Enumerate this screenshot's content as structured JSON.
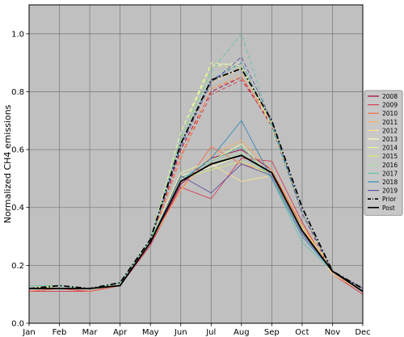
{
  "chart_data": {
    "type": "line",
    "title": "",
    "xlabel": "",
    "ylabel": "Normalized CH4 emissions",
    "categories": [
      "Jan",
      "Feb",
      "Mar",
      "Apr",
      "May",
      "Jun",
      "Jul",
      "Aug",
      "Sep",
      "Oct",
      "Nov",
      "Dec"
    ],
    "ylim": [
      0.0,
      1.1
    ],
    "yticks": [
      "0.0",
      "0.2",
      "0.4",
      "0.6",
      "0.8",
      "1.0"
    ],
    "grid": true,
    "background_color": "#c0c0c0",
    "legend_position": "right",
    "series": [
      {
        "name": "2008",
        "color": "#9e0142",
        "style": "solid",
        "values": [
          0.12,
          0.12,
          0.11,
          0.13,
          0.27,
          0.48,
          0.57,
          0.6,
          0.53,
          0.33,
          0.17,
          0.11
        ]
      },
      {
        "name": "2009",
        "color": "#d53e4f",
        "style": "solid",
        "values": [
          0.11,
          0.11,
          0.11,
          0.13,
          0.27,
          0.47,
          0.43,
          0.57,
          0.56,
          0.35,
          0.17,
          0.1
        ]
      },
      {
        "name": "2010",
        "color": "#f46d43",
        "style": "solid",
        "values": [
          0.11,
          0.12,
          0.11,
          0.13,
          0.28,
          0.46,
          0.61,
          0.55,
          0.52,
          0.34,
          0.17,
          0.11
        ]
      },
      {
        "name": "2011",
        "color": "#fdae61",
        "style": "solid",
        "values": [
          0.12,
          0.12,
          0.12,
          0.13,
          0.28,
          0.46,
          0.58,
          0.63,
          0.53,
          0.34,
          0.18,
          0.11
        ]
      },
      {
        "name": "2012",
        "color": "#fee08b",
        "style": "solid",
        "values": [
          0.12,
          0.13,
          0.12,
          0.13,
          0.28,
          0.49,
          0.55,
          0.49,
          0.51,
          0.32,
          0.17,
          0.11
        ]
      },
      {
        "name": "2013",
        "color": "#ffffbf",
        "style": "solid",
        "values": [
          0.13,
          0.13,
          0.12,
          0.14,
          0.29,
          0.51,
          0.54,
          0.58,
          0.52,
          0.33,
          0.18,
          0.12
        ]
      },
      {
        "name": "2014",
        "color": "#e6f598",
        "style": "solid",
        "values": [
          0.13,
          0.13,
          0.12,
          0.14,
          0.29,
          0.52,
          0.56,
          0.62,
          0.5,
          0.32,
          0.18,
          0.12
        ]
      },
      {
        "name": "2015",
        "color": "#d4e873",
        "style": "solid",
        "values": [
          0.12,
          0.13,
          0.12,
          0.14,
          0.29,
          0.5,
          0.53,
          0.56,
          0.51,
          0.33,
          0.18,
          0.12
        ]
      },
      {
        "name": "2016",
        "color": "#abdda4",
        "style": "solid",
        "values": [
          0.13,
          0.13,
          0.12,
          0.14,
          0.29,
          0.49,
          0.55,
          0.59,
          0.5,
          0.31,
          0.18,
          0.12
        ]
      },
      {
        "name": "2017",
        "color": "#66c2a5",
        "style": "solid",
        "values": [
          0.13,
          0.13,
          0.12,
          0.14,
          0.29,
          0.5,
          0.56,
          0.61,
          0.5,
          0.28,
          0.18,
          0.12
        ]
      },
      {
        "name": "2018",
        "color": "#3288bd",
        "style": "solid",
        "values": [
          0.12,
          0.12,
          0.12,
          0.13,
          0.28,
          0.49,
          0.57,
          0.7,
          0.5,
          0.3,
          0.18,
          0.12
        ]
      },
      {
        "name": "2019",
        "color": "#5e4fa2",
        "style": "solid",
        "values": [
          0.12,
          0.12,
          0.12,
          0.13,
          0.28,
          0.51,
          0.45,
          0.55,
          0.51,
          0.31,
          0.18,
          0.12
        ]
      },
      {
        "name": "Prior",
        "color": "#000000",
        "style": "dashdot",
        "values": [
          0.12,
          0.13,
          0.12,
          0.14,
          0.29,
          0.62,
          0.84,
          0.88,
          0.7,
          0.4,
          0.18,
          0.12
        ]
      },
      {
        "name": "Post",
        "color": "#000000",
        "style": "solid",
        "values": [
          0.12,
          0.12,
          0.12,
          0.13,
          0.28,
          0.49,
          0.55,
          0.58,
          0.52,
          0.32,
          0.18,
          0.11
        ]
      }
    ],
    "prior_yearly_series": {
      "style": "dashed",
      "colors": [
        "#9e0142",
        "#d53e4f",
        "#f46d43",
        "#fdae61",
        "#fee08b",
        "#ffffbf",
        "#e6f598",
        "#d4e873",
        "#abdda4",
        "#66c2a5",
        "#3288bd",
        "#5e4fa2"
      ],
      "jun": [
        0.6,
        0.58,
        0.57,
        0.58,
        0.62,
        0.66,
        0.66,
        0.64,
        0.63,
        0.64,
        0.62,
        0.61
      ],
      "jul": [
        0.8,
        0.79,
        0.81,
        0.81,
        0.83,
        0.89,
        0.9,
        0.89,
        0.86,
        0.87,
        0.84,
        0.83
      ],
      "aug": [
        0.85,
        0.84,
        0.85,
        0.86,
        0.88,
        0.9,
        0.89,
        0.88,
        0.89,
        1.0,
        0.9,
        0.92
      ]
    }
  }
}
